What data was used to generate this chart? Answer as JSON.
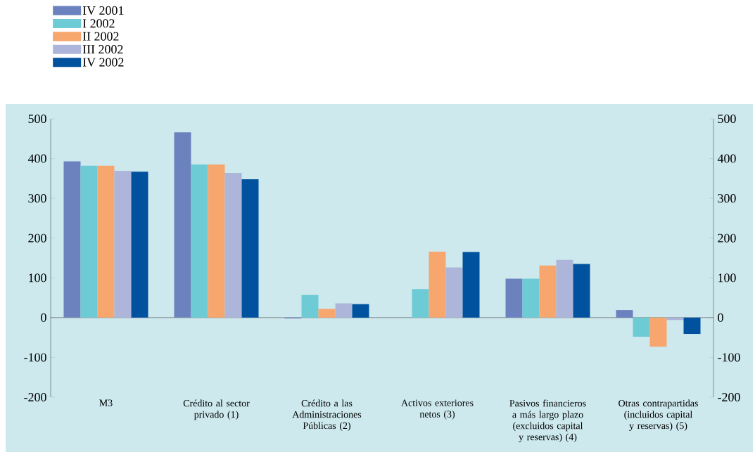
{
  "chart_data": {
    "type": "bar",
    "categories": [
      "M3",
      "Crédito al sector privado (1)",
      "Crédito a las Administraciones Públicas (2)",
      "Activos exteriores netos (3)",
      "Pasivos financieros a más largo plazo (excluidos capital y reservas) (4)",
      "Otras contrapartidas (incluidos capital y reservas) (5)"
    ],
    "series": [
      {
        "name": "IV 2001",
        "color": "#6b82be",
        "values": [
          393,
          466,
          -2,
          0,
          98,
          19
        ]
      },
      {
        "name": "I 2002",
        "color": "#6ccbd4",
        "values": [
          382,
          385,
          57,
          72,
          98,
          -48
        ]
      },
      {
        "name": "II 2002",
        "color": "#f7a66e",
        "values": [
          382,
          385,
          22,
          166,
          131,
          -73
        ]
      },
      {
        "name": "III 2002",
        "color": "#adb6da",
        "values": [
          369,
          364,
          36,
          126,
          145,
          -6
        ]
      },
      {
        "name": "IV 2002",
        "color": "#00529f",
        "values": [
          367,
          348,
          34,
          165,
          135,
          -41
        ]
      }
    ],
    "ylim": [
      -200,
      500
    ],
    "yticks": [
      -200,
      -100,
      0,
      100,
      200,
      300,
      400,
      500
    ],
    "y2lim": [
      -200,
      500
    ],
    "y2ticks": [
      -200,
      -100,
      0,
      100,
      200,
      300,
      400,
      500
    ],
    "legend": "top left"
  }
}
